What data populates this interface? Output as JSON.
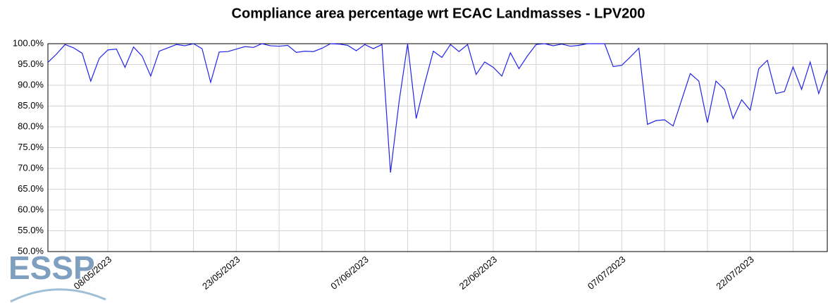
{
  "chart_data": {
    "type": "line",
    "title": "Compliance area percentage wrt ECAC Landmasses - LPV200",
    "logo": "ESSP",
    "x": [
      "2023-05-01",
      "2023-05-02",
      "2023-05-03",
      "2023-05-04",
      "2023-05-05",
      "2023-05-06",
      "2023-05-07",
      "2023-05-08",
      "2023-05-09",
      "2023-05-10",
      "2023-05-11",
      "2023-05-12",
      "2023-05-13",
      "2023-05-14",
      "2023-05-15",
      "2023-05-16",
      "2023-05-17",
      "2023-05-18",
      "2023-05-19",
      "2023-05-20",
      "2023-05-21",
      "2023-05-22",
      "2023-05-23",
      "2023-05-24",
      "2023-05-25",
      "2023-05-26",
      "2023-05-27",
      "2023-05-28",
      "2023-05-29",
      "2023-05-30",
      "2023-05-31",
      "2023-06-01",
      "2023-06-02",
      "2023-06-03",
      "2023-06-04",
      "2023-06-05",
      "2023-06-06",
      "2023-06-07",
      "2023-06-08",
      "2023-06-09",
      "2023-06-10",
      "2023-06-11",
      "2023-06-12",
      "2023-06-13",
      "2023-06-14",
      "2023-06-15",
      "2023-06-16",
      "2023-06-17",
      "2023-06-18",
      "2023-06-19",
      "2023-06-20",
      "2023-06-21",
      "2023-06-22",
      "2023-06-23",
      "2023-06-24",
      "2023-06-25",
      "2023-06-26",
      "2023-06-27",
      "2023-06-28",
      "2023-06-29",
      "2023-06-30",
      "2023-07-01",
      "2023-07-02",
      "2023-07-03",
      "2023-07-04",
      "2023-07-05",
      "2023-07-06",
      "2023-07-07",
      "2023-07-08",
      "2023-07-09",
      "2023-07-10",
      "2023-07-11",
      "2023-07-12",
      "2023-07-13",
      "2023-07-14",
      "2023-07-15",
      "2023-07-16",
      "2023-07-17",
      "2023-07-18",
      "2023-07-19",
      "2023-07-20",
      "2023-07-21",
      "2023-07-22",
      "2023-07-23",
      "2023-07-24",
      "2023-07-25",
      "2023-07-26",
      "2023-07-27",
      "2023-07-28",
      "2023-07-29",
      "2023-07-30",
      "2023-07-31"
    ],
    "series": [
      {
        "name": "LPV200",
        "color": "#2323e8",
        "values": [
          95.5,
          97.5,
          99.8,
          99,
          97.7,
          91,
          96.5,
          98.5,
          98.7,
          94.3,
          99.2,
          97,
          92.2,
          98.2,
          99,
          99.8,
          99.5,
          100,
          98.8,
          90.7,
          98,
          98.1,
          98.7,
          99.3,
          99.1,
          100,
          99.5,
          99.4,
          99.6,
          97.9,
          98.2,
          98.1,
          98.9,
          100,
          99.9,
          99.6,
          98.3,
          99.8,
          98.8,
          99.8,
          69,
          86,
          100,
          82,
          90.5,
          98.2,
          96.7,
          99.8,
          98.1,
          99.8,
          92.6,
          95.6,
          94.3,
          92.2,
          97.8,
          94,
          97.1,
          99.8,
          100,
          99.5,
          99.9,
          99.4,
          99.6,
          100,
          100,
          100,
          94.5,
          94.8,
          96.8,
          98.9,
          80.6,
          81.5,
          81.7,
          80.2,
          86.5,
          92.8,
          91,
          81,
          91,
          89,
          82,
          86.5,
          84,
          94,
          96,
          88,
          88.5,
          94.4,
          89,
          95.6,
          88,
          93.8
        ]
      }
    ],
    "xlim": [
      "2023-05-01",
      "2023-07-31"
    ],
    "xticks": [
      {
        "value": "2023-05-08",
        "label": "08/05/2023"
      },
      {
        "value": "2023-05-23",
        "label": "23/05/2023"
      },
      {
        "value": "2023-06-07",
        "label": "07/06/2023"
      },
      {
        "value": "2023-06-22",
        "label": "22/06/2023"
      },
      {
        "value": "2023-07-07",
        "label": "07/07/2023"
      },
      {
        "value": "2023-07-22",
        "label": "22/07/2023"
      }
    ],
    "x_minor_ticks": [
      "2023-05-03",
      "2023-05-13",
      "2023-05-18",
      "2023-05-28",
      "2023-06-02",
      "2023-06-12",
      "2023-06-17",
      "2023-06-27",
      "2023-07-02",
      "2023-07-12",
      "2023-07-17",
      "2023-07-27"
    ],
    "ylim": [
      50,
      100
    ],
    "yticks": [
      {
        "value": 50,
        "label": "50.0%"
      },
      {
        "value": 55,
        "label": "55.0%"
      },
      {
        "value": 60,
        "label": "60.0%"
      },
      {
        "value": 65,
        "label": "65.0%"
      },
      {
        "value": 70,
        "label": "70.0%"
      },
      {
        "value": 75,
        "label": "75.0%"
      },
      {
        "value": 80,
        "label": "80.0%"
      },
      {
        "value": 85,
        "label": "85.0%"
      },
      {
        "value": 90,
        "label": "90.0%"
      },
      {
        "value": 95,
        "label": "95.0%"
      },
      {
        "value": 100,
        "label": "100.0%"
      }
    ],
    "grid": true
  }
}
